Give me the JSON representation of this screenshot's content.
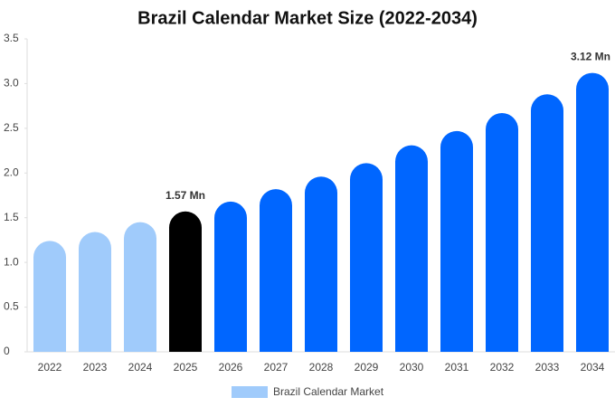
{
  "chart_data": {
    "type": "bar",
    "title": "Brazil Calendar Market Size (2022-2034)",
    "categories": [
      "2022",
      "2023",
      "2024",
      "2025",
      "2026",
      "2027",
      "2028",
      "2029",
      "2030",
      "2031",
      "2032",
      "2033",
      "2034"
    ],
    "series": [
      {
        "name": "Brazil Calendar Market",
        "color": "#a0cbfb",
        "colors": [
          "#a0cbfb",
          "#a0cbfb",
          "#a0cbfb",
          "#000000",
          "#0066ff",
          "#0066ff",
          "#0066ff",
          "#0066ff",
          "#0066ff",
          "#0066ff",
          "#0066ff",
          "#0066ff",
          "#0066ff"
        ],
        "values": [
          1.24,
          1.34,
          1.45,
          1.57,
          1.68,
          1.82,
          1.96,
          2.11,
          2.31,
          2.47,
          2.67,
          2.88,
          3.12
        ],
        "value_labels": [
          null,
          null,
          null,
          "1.57 Mn",
          null,
          null,
          null,
          null,
          null,
          null,
          null,
          null,
          "3.12 Mn"
        ]
      }
    ],
    "ylim": [
      0,
      3.5
    ],
    "yticks": [
      0,
      0.5,
      {
        "value": 1,
        "label": "1.0"
      },
      1.5,
      {
        "value": 2,
        "label": "2.0"
      },
      2.5,
      {
        "value": 3,
        "label": "3.0"
      },
      3.5
    ],
    "grid": false
  }
}
